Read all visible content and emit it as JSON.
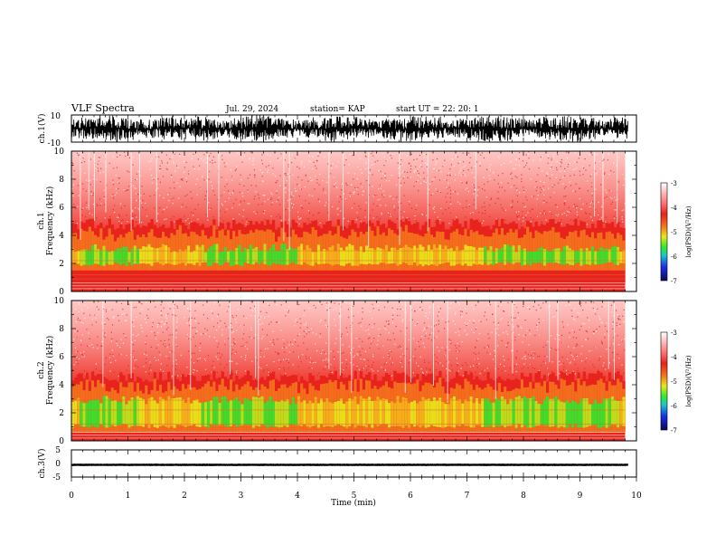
{
  "header": {
    "title": "VLF Spectra",
    "date": "Jul. 29, 2024",
    "station": "station= KAP",
    "start": "start UT =  22: 20: 1"
  },
  "chart_data": [
    {
      "type": "line",
      "title": "",
      "ylabel": "ch.1(V)",
      "ylim": [
        -10,
        10
      ],
      "yticks": [
        "10",
        "-10"
      ],
      "xlim": [
        0,
        10
      ],
      "description_values": {
        "center": 0,
        "swing_approx": 8
      }
    },
    {
      "type": "heatmap",
      "ylabel": "ch.1\nFrequency (kHz)",
      "ylabel_line1": "ch.1",
      "ylabel_line2": "Frequency (kHz)",
      "ylim": [
        0,
        10
      ],
      "yticks": [
        "0",
        "2",
        "4",
        "6",
        "8",
        "10"
      ],
      "xlim": [
        0,
        10
      ],
      "data_end_min": 9.8,
      "band_top_khz": 4.8,
      "green_band_khz": [
        1.8,
        3.4
      ],
      "colorbar": {
        "label": "log(PSD)(V²/Hz)",
        "ticks": [
          "-3",
          "-4",
          "-5",
          "-6",
          "-7"
        ],
        "range": [
          -7,
          -3
        ]
      }
    },
    {
      "type": "heatmap",
      "ylabel_line1": "ch.2",
      "ylabel_line2": "Frequency (kHz)",
      "ylim": [
        0,
        10
      ],
      "yticks": [
        "0",
        "2",
        "4",
        "6",
        "8",
        "10"
      ],
      "xlim": [
        0,
        10
      ],
      "data_end_min": 9.8,
      "band_top_khz": 4.6,
      "green_band_khz": [
        0.9,
        3.2
      ],
      "colorbar": {
        "label": "log(PSD)(V²/Hz)",
        "ticks": [
          "-3",
          "-4",
          "-5",
          "-6",
          "-7"
        ],
        "range": [
          -7,
          -3
        ]
      }
    },
    {
      "type": "line",
      "ylabel": "ch.3(V)",
      "ylim": [
        -5,
        5
      ],
      "yticks": [
        "5",
        "0",
        "-5"
      ],
      "xlim": [
        0,
        10
      ],
      "level": -0.5,
      "xlabel": "Time (min)",
      "xticks": [
        "0",
        "1",
        "2",
        "3",
        "4",
        "5",
        "6",
        "7",
        "8",
        "9",
        "10"
      ]
    }
  ],
  "colors": {
    "white": "#ffffff",
    "red": "#e8221c",
    "orange": "#f47a1c",
    "yellow": "#e8e81c",
    "green": "#2ee82e",
    "blue": "#1c30e8",
    "navy": "#0a0a5a"
  }
}
